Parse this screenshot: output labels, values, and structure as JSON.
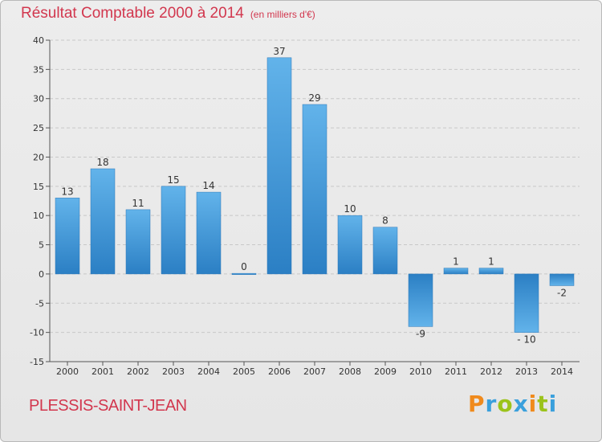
{
  "chart_data": {
    "type": "bar",
    "title": "Résultat Comptable 2000 à 2014",
    "subtitle": "(en milliers d'€)",
    "categories": [
      "2000",
      "2001",
      "2002",
      "2003",
      "2004",
      "2005",
      "2006",
      "2007",
      "2008",
      "2009",
      "2010",
      "2011",
      "2012",
      "2013",
      "2014"
    ],
    "values": [
      13,
      18,
      11,
      15,
      14,
      0,
      37,
      29,
      10,
      8,
      -9,
      1,
      1,
      -10,
      -2
    ],
    "value_labels": [
      "13",
      "18",
      "11",
      "15",
      "14",
      "0",
      "37",
      "29",
      "10",
      "8",
      "-9",
      "1",
      "1",
      "- 10",
      "-2"
    ],
    "ylim": [
      -15,
      40
    ],
    "yticks": [
      40,
      35,
      30,
      25,
      20,
      15,
      10,
      5,
      0,
      -5,
      -10,
      -15
    ],
    "ytick_labels": [
      "40",
      "35",
      "30",
      "25",
      "20",
      "15",
      "10",
      "5",
      "0",
      "-5",
      "-10",
      "-15"
    ],
    "xlabel": "",
    "ylabel": "",
    "grid": true,
    "bar_color": "#3a8fd6",
    "grid_color": "#c8c8c8"
  },
  "footer": {
    "commune": "PLESSIS-SAINT-JEAN",
    "logo": {
      "p": "P",
      "r": "r",
      "o": "o",
      "x": "x",
      "i": "i",
      "t": "t",
      "i2": "i"
    }
  }
}
